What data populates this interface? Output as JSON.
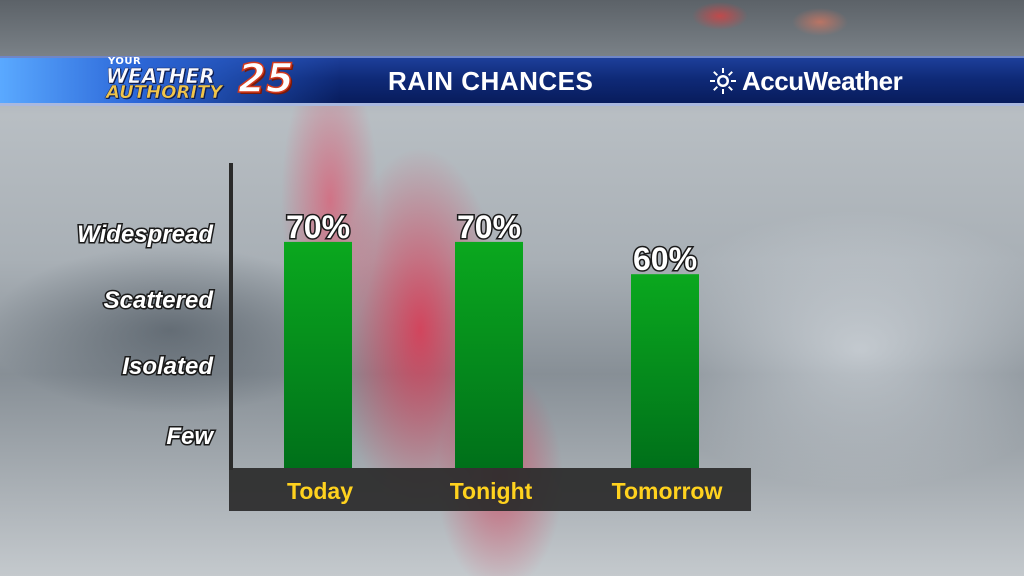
{
  "header": {
    "station_logo": {
      "line_small": "YOUR",
      "line1": "WEATHER",
      "line2": "AUTHORITY",
      "number": "25"
    },
    "title": "RAIN CHANCES",
    "sponsor": "AccuWeather",
    "sponsor_icon": "sun-icon"
  },
  "colors": {
    "bar": "#0a9a1a",
    "bar_dark": "#00801a",
    "category_label": "#ffd21e",
    "banner": "#0f2a78"
  },
  "chart_data": {
    "type": "bar",
    "title": "RAIN CHANCES",
    "categories": [
      "Today",
      "Tonight",
      "Tomorrow"
    ],
    "values": [
      70,
      70,
      60
    ],
    "data_labels": [
      "70%",
      "70%",
      "60%"
    ],
    "y_category_labels": [
      "Widespread",
      "Scattered",
      "Isolated",
      "Few"
    ],
    "ylim": [
      0,
      100
    ],
    "grid": false,
    "legend": "none"
  }
}
